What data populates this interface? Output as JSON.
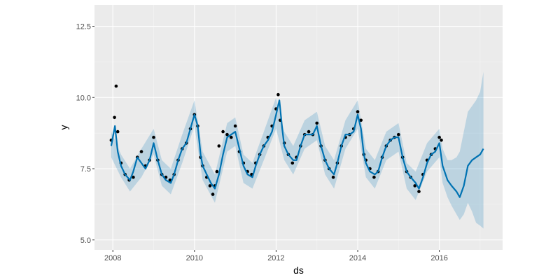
{
  "chart_data": {
    "type": "scatter",
    "xlabel": "ds",
    "ylabel": "y",
    "xlim": [
      2007.55,
      2017.55
    ],
    "ylim": [
      4.65,
      13.25
    ],
    "grid": true,
    "x_ticks": [
      {
        "value": 2008,
        "label": "2008"
      },
      {
        "value": 2010,
        "label": "2010"
      },
      {
        "value": 2012,
        "label": "2012"
      },
      {
        "value": 2014,
        "label": "2014"
      },
      {
        "value": 2016,
        "label": "2016"
      }
    ],
    "y_ticks": [
      {
        "value": 5.0,
        "label": "5.0"
      },
      {
        "value": 7.5,
        "label": "7.5"
      },
      {
        "value": 10.0,
        "label": "10.0"
      },
      {
        "value": 12.5,
        "label": "12.5"
      }
    ],
    "colors": {
      "panel": "#EBEBEB",
      "grid_major": "#FFFFFF",
      "points": "#000000",
      "forecast_line": "#0072B2",
      "uncertainty_band": "#0072B2"
    },
    "series": [
      {
        "kind": "observed-points",
        "x": [
          2007.96,
          2008.04,
          2008.08,
          2008.12,
          2008.2,
          2008.3,
          2008.4,
          2008.5,
          2008.6,
          2008.7,
          2008.8,
          2008.9,
          2009.0,
          2009.1,
          2009.2,
          2009.3,
          2009.4,
          2009.5,
          2009.6,
          2009.7,
          2009.8,
          2009.9,
          2010.0,
          2010.08,
          2010.15,
          2010.2,
          2010.3,
          2010.38,
          2010.45,
          2010.5,
          2010.55,
          2010.6,
          2010.7,
          2010.8,
          2010.9,
          2011.0,
          2011.1,
          2011.2,
          2011.3,
          2011.4,
          2011.5,
          2011.6,
          2011.7,
          2011.8,
          2011.9,
          2012.0,
          2012.05,
          2012.1,
          2012.2,
          2012.3,
          2012.4,
          2012.5,
          2012.6,
          2012.7,
          2012.8,
          2012.9,
          2013.0,
          2013.1,
          2013.2,
          2013.3,
          2013.4,
          2013.5,
          2013.6,
          2013.7,
          2013.8,
          2013.9,
          2014.0,
          2014.08,
          2014.15,
          2014.2,
          2014.3,
          2014.4,
          2014.5,
          2014.6,
          2014.7,
          2014.8,
          2014.9,
          2015.0,
          2015.1,
          2015.2,
          2015.3,
          2015.4,
          2015.5,
          2015.6,
          2015.7,
          2015.8,
          2015.9,
          2016.0,
          2016.05
        ],
        "y": [
          8.5,
          9.3,
          10.4,
          8.8,
          7.7,
          7.3,
          7.1,
          7.2,
          7.9,
          8.1,
          7.6,
          7.8,
          8.6,
          7.8,
          7.3,
          7.2,
          7.1,
          7.3,
          7.8,
          8.2,
          8.4,
          8.9,
          9.4,
          9.0,
          7.9,
          7.6,
          7.2,
          6.9,
          6.6,
          6.9,
          7.4,
          8.3,
          8.8,
          8.7,
          8.6,
          9.0,
          8.1,
          7.7,
          7.4,
          7.3,
          7.7,
          8.0,
          8.3,
          8.6,
          9.0,
          9.6,
          10.1,
          9.2,
          8.4,
          8.0,
          7.7,
          7.9,
          8.3,
          8.7,
          8.8,
          8.7,
          9.1,
          8.3,
          7.8,
          7.5,
          7.2,
          7.7,
          8.3,
          8.6,
          8.7,
          8.9,
          9.5,
          9.2,
          8.0,
          7.8,
          7.5,
          7.2,
          7.4,
          7.9,
          8.3,
          8.5,
          8.6,
          8.7,
          7.9,
          7.4,
          7.2,
          6.9,
          6.7,
          7.3,
          7.8,
          8.0,
          8.2,
          8.6,
          8.5
        ]
      },
      {
        "kind": "forecast-line",
        "x": [
          2007.96,
          2008.05,
          2008.12,
          2008.2,
          2008.3,
          2008.42,
          2008.5,
          2008.6,
          2008.7,
          2008.8,
          2008.9,
          2009.0,
          2009.1,
          2009.2,
          2009.3,
          2009.42,
          2009.5,
          2009.6,
          2009.7,
          2009.8,
          2009.9,
          2010.0,
          2010.08,
          2010.15,
          2010.2,
          2010.3,
          2010.4,
          2010.5,
          2010.6,
          2010.7,
          2010.8,
          2010.9,
          2011.0,
          2011.1,
          2011.2,
          2011.3,
          2011.42,
          2011.5,
          2011.6,
          2011.7,
          2011.8,
          2011.9,
          2012.0,
          2012.08,
          2012.15,
          2012.2,
          2012.3,
          2012.42,
          2012.5,
          2012.6,
          2012.7,
          2012.8,
          2012.9,
          2013.0,
          2013.1,
          2013.2,
          2013.3,
          2013.42,
          2013.5,
          2013.6,
          2013.7,
          2013.8,
          2013.9,
          2014.0,
          2014.08,
          2014.15,
          2014.2,
          2014.3,
          2014.42,
          2014.5,
          2014.6,
          2014.7,
          2014.8,
          2014.9,
          2015.0,
          2015.1,
          2015.2,
          2015.3,
          2015.42,
          2015.5,
          2015.6,
          2015.7,
          2015.8,
          2015.9,
          2016.0,
          2016.08,
          2016.2,
          2016.3,
          2016.42,
          2016.5,
          2016.6,
          2016.7,
          2016.8,
          2016.9,
          2017.0,
          2017.08
        ],
        "y": [
          8.3,
          9.0,
          8.1,
          7.6,
          7.3,
          7.1,
          7.4,
          7.9,
          7.7,
          7.5,
          7.8,
          8.4,
          7.8,
          7.3,
          7.1,
          7.0,
          7.3,
          7.8,
          8.2,
          8.4,
          8.9,
          9.4,
          9.0,
          8.0,
          7.6,
          7.3,
          7.0,
          6.8,
          7.3,
          8.0,
          8.6,
          8.7,
          8.8,
          8.2,
          7.6,
          7.3,
          7.2,
          7.6,
          8.0,
          8.3,
          8.5,
          8.8,
          9.4,
          9.9,
          8.9,
          8.3,
          8.0,
          7.8,
          7.8,
          8.3,
          8.7,
          8.7,
          8.7,
          9.0,
          8.3,
          7.8,
          7.5,
          7.3,
          7.7,
          8.3,
          8.7,
          8.7,
          8.8,
          9.4,
          8.9,
          8.0,
          7.7,
          7.4,
          7.3,
          7.4,
          7.9,
          8.3,
          8.5,
          8.6,
          8.6,
          7.9,
          7.4,
          7.2,
          7.0,
          6.8,
          7.2,
          7.7,
          8.0,
          8.1,
          8.4,
          7.6,
          7.1,
          6.9,
          6.7,
          6.5,
          6.9,
          7.6,
          7.8,
          7.9,
          8.0,
          8.2
        ]
      },
      {
        "kind": "uncertainty-band",
        "x": [
          2007.96,
          2008.2,
          2008.42,
          2008.7,
          2009.0,
          2009.2,
          2009.42,
          2009.7,
          2010.0,
          2010.2,
          2010.5,
          2010.8,
          2011.0,
          2011.2,
          2011.42,
          2011.7,
          2012.0,
          2012.2,
          2012.42,
          2012.7,
          2013.0,
          2013.2,
          2013.42,
          2013.7,
          2014.0,
          2014.2,
          2014.42,
          2014.7,
          2015.0,
          2015.2,
          2015.42,
          2015.7,
          2016.0,
          2016.08,
          2016.2,
          2016.3,
          2016.42,
          2016.5,
          2016.6,
          2016.7,
          2016.8,
          2016.9,
          2017.0,
          2017.08
        ],
        "lower": [
          7.9,
          7.2,
          6.7,
          7.2,
          8.0,
          6.9,
          6.6,
          7.7,
          9.0,
          7.1,
          6.3,
          8.1,
          8.3,
          7.0,
          6.8,
          7.8,
          8.9,
          7.8,
          7.3,
          8.2,
          8.5,
          7.3,
          6.8,
          8.2,
          8.9,
          7.2,
          6.8,
          7.8,
          8.1,
          6.8,
          6.4,
          7.4,
          7.9,
          7.0,
          6.5,
          6.2,
          5.9,
          5.7,
          5.9,
          6.3,
          6.0,
          5.6,
          5.5,
          5.4
        ],
        "upper": [
          8.8,
          8.0,
          7.5,
          8.2,
          8.9,
          7.8,
          7.5,
          8.7,
          9.9,
          8.1,
          7.3,
          9.1,
          9.3,
          8.0,
          7.7,
          8.8,
          10.0,
          8.8,
          8.3,
          9.2,
          9.5,
          8.3,
          7.8,
          9.2,
          9.9,
          8.2,
          7.8,
          8.8,
          9.1,
          7.7,
          7.4,
          8.4,
          8.9,
          8.2,
          7.8,
          7.8,
          7.9,
          8.1,
          8.8,
          9.5,
          9.7,
          9.9,
          10.2,
          10.9
        ]
      }
    ]
  }
}
